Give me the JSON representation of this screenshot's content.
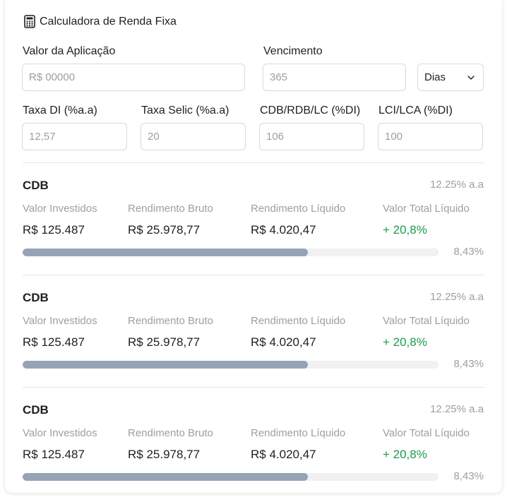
{
  "header": {
    "title": "Calculadora de Renda Fixa",
    "icon": "calculator-icon"
  },
  "form": {
    "valor_label": "Valor da Aplicação",
    "valor_placeholder": "R$ 00000",
    "vencimento_label": "Vencimento",
    "vencimento_placeholder": "365",
    "periodo_value": "Dias",
    "taxa_di_label": "Taxa DI (%a.a)",
    "taxa_di_placeholder": "12,57",
    "taxa_selic_label": "Taxa Selic (%a.a)",
    "taxa_selic_placeholder": "20",
    "cdb_label": "CDB/RDB/LC (%DI)",
    "cdb_placeholder": "106",
    "lci_label": "LCI/LCA (%DI)",
    "lci_placeholder": "100"
  },
  "results": [
    {
      "title": "CDB",
      "rate": "12.25% a.a",
      "labels": [
        "Valor Investidos",
        "Rendimento Bruto",
        "Rendimento Líquido",
        "Valor Total Líquido"
      ],
      "values": [
        "R$ 125.487",
        "R$ 25.978,77",
        "R$ 4.020,47",
        "+ 20,8%"
      ],
      "progress": 0.686,
      "progress_label": "8,43%"
    },
    {
      "title": "CDB",
      "rate": "12.25% a.a",
      "labels": [
        "Valor Investidos",
        "Rendimento Bruto",
        "Rendimento Líquido",
        "Valor Total Líquido"
      ],
      "values": [
        "R$ 125.487",
        "R$ 25.978,77",
        "R$ 4.020,47",
        "+ 20,8%"
      ],
      "progress": 0.686,
      "progress_label": "8,43%"
    },
    {
      "title": "CDB",
      "rate": "12.25% a.a",
      "labels": [
        "Valor Investidos",
        "Rendimento Bruto",
        "Rendimento Líquido",
        "Valor Total Líquido"
      ],
      "values": [
        "R$ 125.487",
        "R$ 25.978,77",
        "R$ 4.020,47",
        "+ 20,8%"
      ],
      "progress": 0.686,
      "progress_label": "8,43%"
    }
  ],
  "colors": {
    "positive": "#1a9c4a",
    "progress_fill": "#95a3b6",
    "progress_track": "#f1f1f1"
  }
}
